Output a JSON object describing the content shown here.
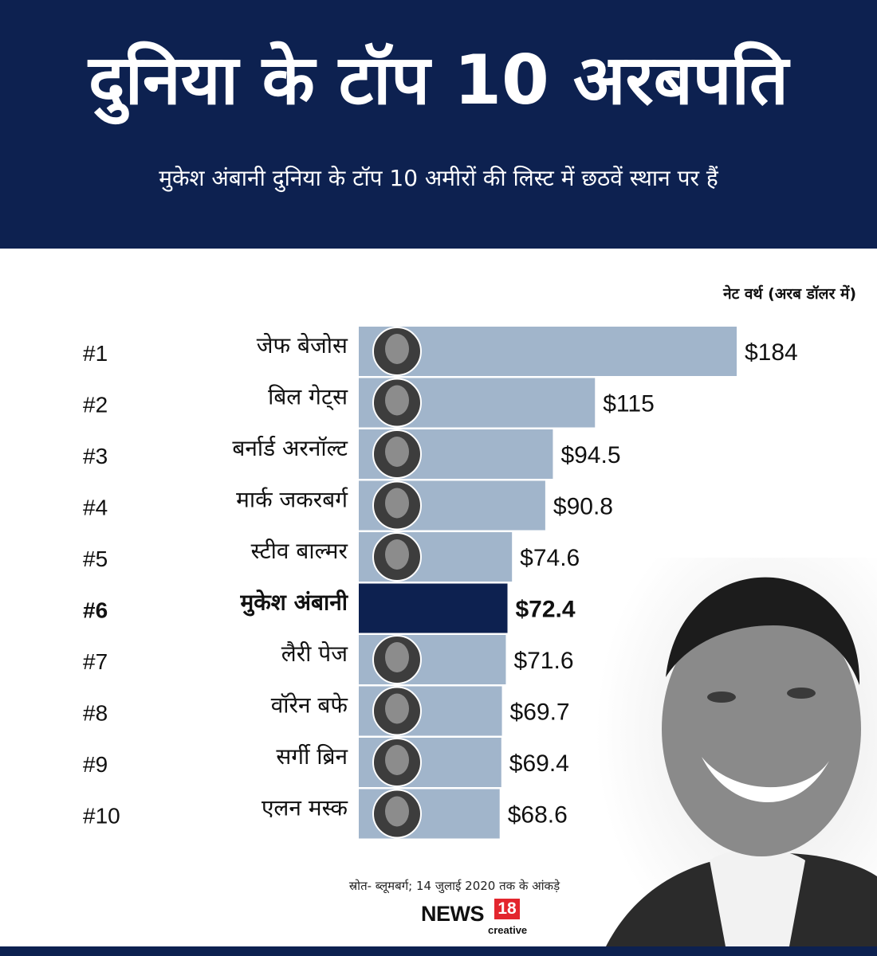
{
  "header": {
    "title": "दुनिया के टॉप 10 अरबपति",
    "subtitle": "मुकेश अंबानी दुनिया के टॉप 10 अमीरों की लिस्ट में छठवें स्थान पर हैं"
  },
  "chart_data": {
    "type": "bar",
    "orientation": "horizontal",
    "unit_label": "नेट वर्थ (अरब डॉलर में)",
    "ranks": [
      "#1",
      "#2",
      "#3",
      "#4",
      "#5",
      "#6",
      "#7",
      "#8",
      "#9",
      "#10"
    ],
    "categories": [
      "जेफ बेजोस",
      "बिल गेट्स",
      "बर्नार्ड अरनॉल्ट",
      "मार्क जकरबर्ग",
      "स्टीव बाल्मर",
      "मुकेश अंबानी",
      "लैरी पेज",
      "वॉरेन बफे",
      "सर्गी ब्रिन",
      "एलन मस्क"
    ],
    "values": [
      184,
      115,
      94.5,
      90.8,
      74.6,
      72.4,
      71.6,
      69.7,
      69.4,
      68.6
    ],
    "value_labels": [
      "$184",
      "$115",
      "$94.5",
      "$90.8",
      "$74.6",
      "$72.4",
      "$71.6",
      "$69.7",
      "$69.4",
      "$68.6"
    ],
    "highlight_index": 5,
    "colors": {
      "bar": "#a1b5cb",
      "highlight": "#0d2150"
    }
  },
  "footer": {
    "source": "स्रोत- ब्लूमबर्ग; 14 जुलाई 2020 तक के आंकड़े",
    "logo_text": "NEWS",
    "logo_number": "18",
    "logo_sub": "creative"
  },
  "colors": {
    "header_bg": "#0d2150",
    "logo_red": "#e3262e"
  }
}
